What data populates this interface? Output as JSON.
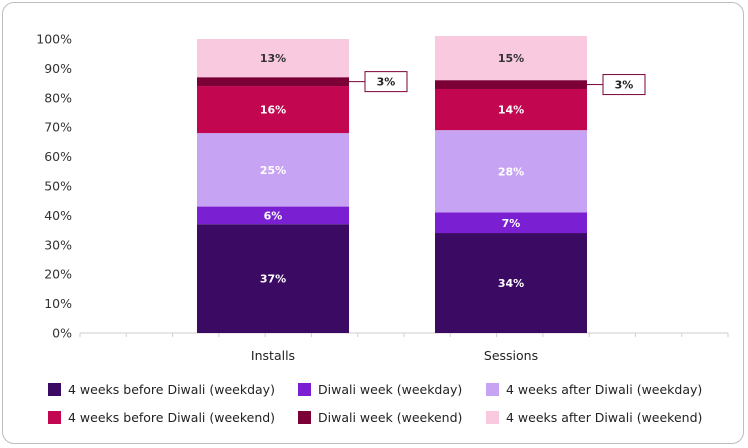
{
  "chart_data": {
    "type": "bar",
    "stacked": true,
    "categories": [
      "Installs",
      "Sessions"
    ],
    "ylim": [
      0,
      100
    ],
    "yticks": [
      "0%",
      "10%",
      "20%",
      "30%",
      "40%",
      "50%",
      "60%",
      "70%",
      "80%",
      "90%",
      "100%"
    ],
    "series": [
      {
        "name": "4 weeks before Diwali (weekday)",
        "color": "#3b0a63",
        "values": [
          37,
          34
        ],
        "labels": [
          "37%",
          "34%"
        ]
      },
      {
        "name": "Diwali week (weekday)",
        "color": "#7a1fd2",
        "values": [
          6,
          7
        ],
        "labels": [
          "6%",
          "7%"
        ]
      },
      {
        "name": "4 weeks after Diwali (weekday)",
        "color": "#c7a3f3",
        "values": [
          25,
          28
        ],
        "labels": [
          "25%",
          "28%"
        ]
      },
      {
        "name": "4 weeks before Diwali (weekend)",
        "color": "#c2064f",
        "values": [
          16,
          14
        ],
        "labels": [
          "16%",
          "14%"
        ]
      },
      {
        "name": "Diwali week (weekend)",
        "color": "#7a0036",
        "values": [
          3,
          3
        ],
        "labels": [
          "3%",
          "3%"
        ]
      },
      {
        "name": "4 weeks after Diwali (weekend)",
        "color": "#f8c9df",
        "values": [
          13,
          15
        ],
        "labels": [
          "13%",
          "15%"
        ]
      }
    ],
    "grid": false,
    "legend_position": "bottom"
  }
}
